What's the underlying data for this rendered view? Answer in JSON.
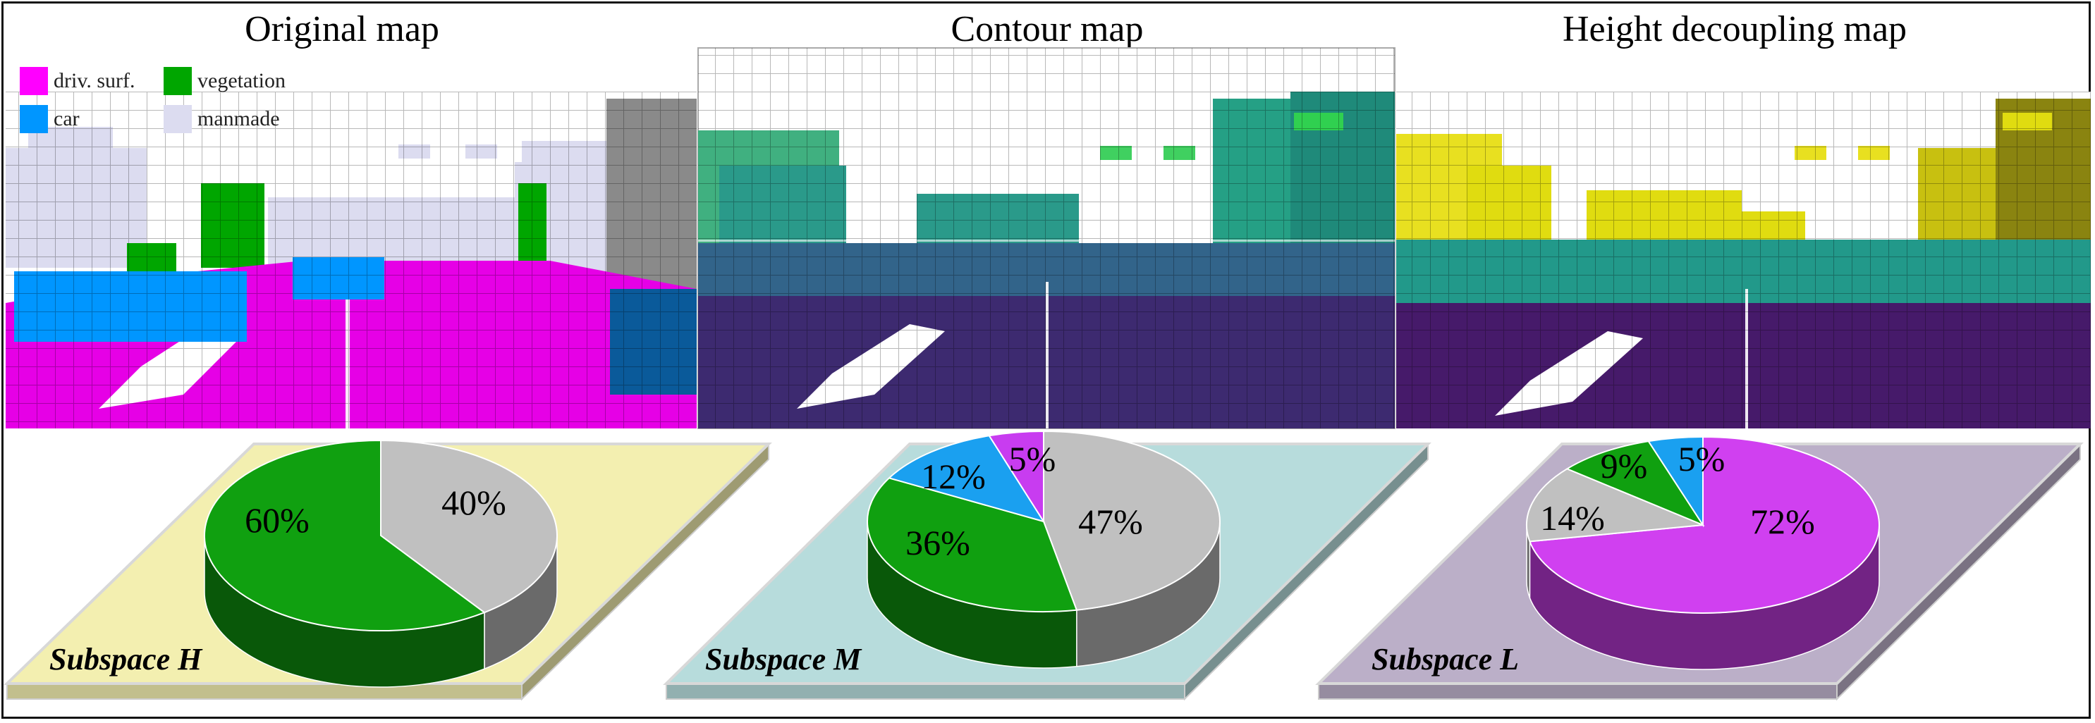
{
  "panels": [
    {
      "title": "Original map"
    },
    {
      "title": "Contour map"
    },
    {
      "title": "Height decoupling map"
    }
  ],
  "legend": [
    {
      "label": "driv. surf.",
      "color": "#ff00ff"
    },
    {
      "label": "vegetation",
      "color": "#00a600"
    },
    {
      "label": "car",
      "color": "#0096ff"
    },
    {
      "label": "manmade",
      "color": "#dcdcf0"
    }
  ],
  "subspaces": [
    {
      "label": "Subspace H",
      "plate_color": "#f3efb0",
      "slices": [
        {
          "name": "manmade",
          "value": 40,
          "label": "40%",
          "color": "#c0c0c0"
        },
        {
          "name": "vegetation",
          "value": 60,
          "label": "60%",
          "color": "#10a010"
        }
      ]
    },
    {
      "label": "Subspace M",
      "plate_color": "#b7dcdc",
      "slices": [
        {
          "name": "manmade",
          "value": 47,
          "label": "47%",
          "color": "#c0c0c0"
        },
        {
          "name": "vegetation",
          "value": 36,
          "label": "36%",
          "color": "#10a010"
        },
        {
          "name": "car",
          "value": 12,
          "label": "12%",
          "color": "#1aa0f0"
        },
        {
          "name": "driv. surf.",
          "value": 5,
          "label": "5%",
          "color": "#c83cf0"
        }
      ]
    },
    {
      "label": "Subspace L",
      "plate_color": "#bbafc8",
      "slices": [
        {
          "name": "driv. surf.",
          "value": 72,
          "label": "72%",
          "color": "#d040f0"
        },
        {
          "name": "manmade",
          "value": 14,
          "label": "14%",
          "color": "#c0c0c0"
        },
        {
          "name": "vegetation",
          "value": 9,
          "label": "9%",
          "color": "#10a010"
        },
        {
          "name": "car",
          "value": 5,
          "label": "5%",
          "color": "#1aa0f0"
        }
      ]
    }
  ],
  "chart_data": [
    {
      "type": "pie",
      "title": "Subspace H",
      "categories": [
        "manmade",
        "vegetation"
      ],
      "values": [
        40,
        60
      ]
    },
    {
      "type": "pie",
      "title": "Subspace M",
      "categories": [
        "manmade",
        "vegetation",
        "car",
        "driv. surf."
      ],
      "values": [
        47,
        36,
        12,
        5
      ]
    },
    {
      "type": "pie",
      "title": "Subspace L",
      "categories": [
        "driv. surf.",
        "manmade",
        "vegetation",
        "car"
      ],
      "values": [
        72,
        14,
        9,
        5
      ]
    }
  ]
}
